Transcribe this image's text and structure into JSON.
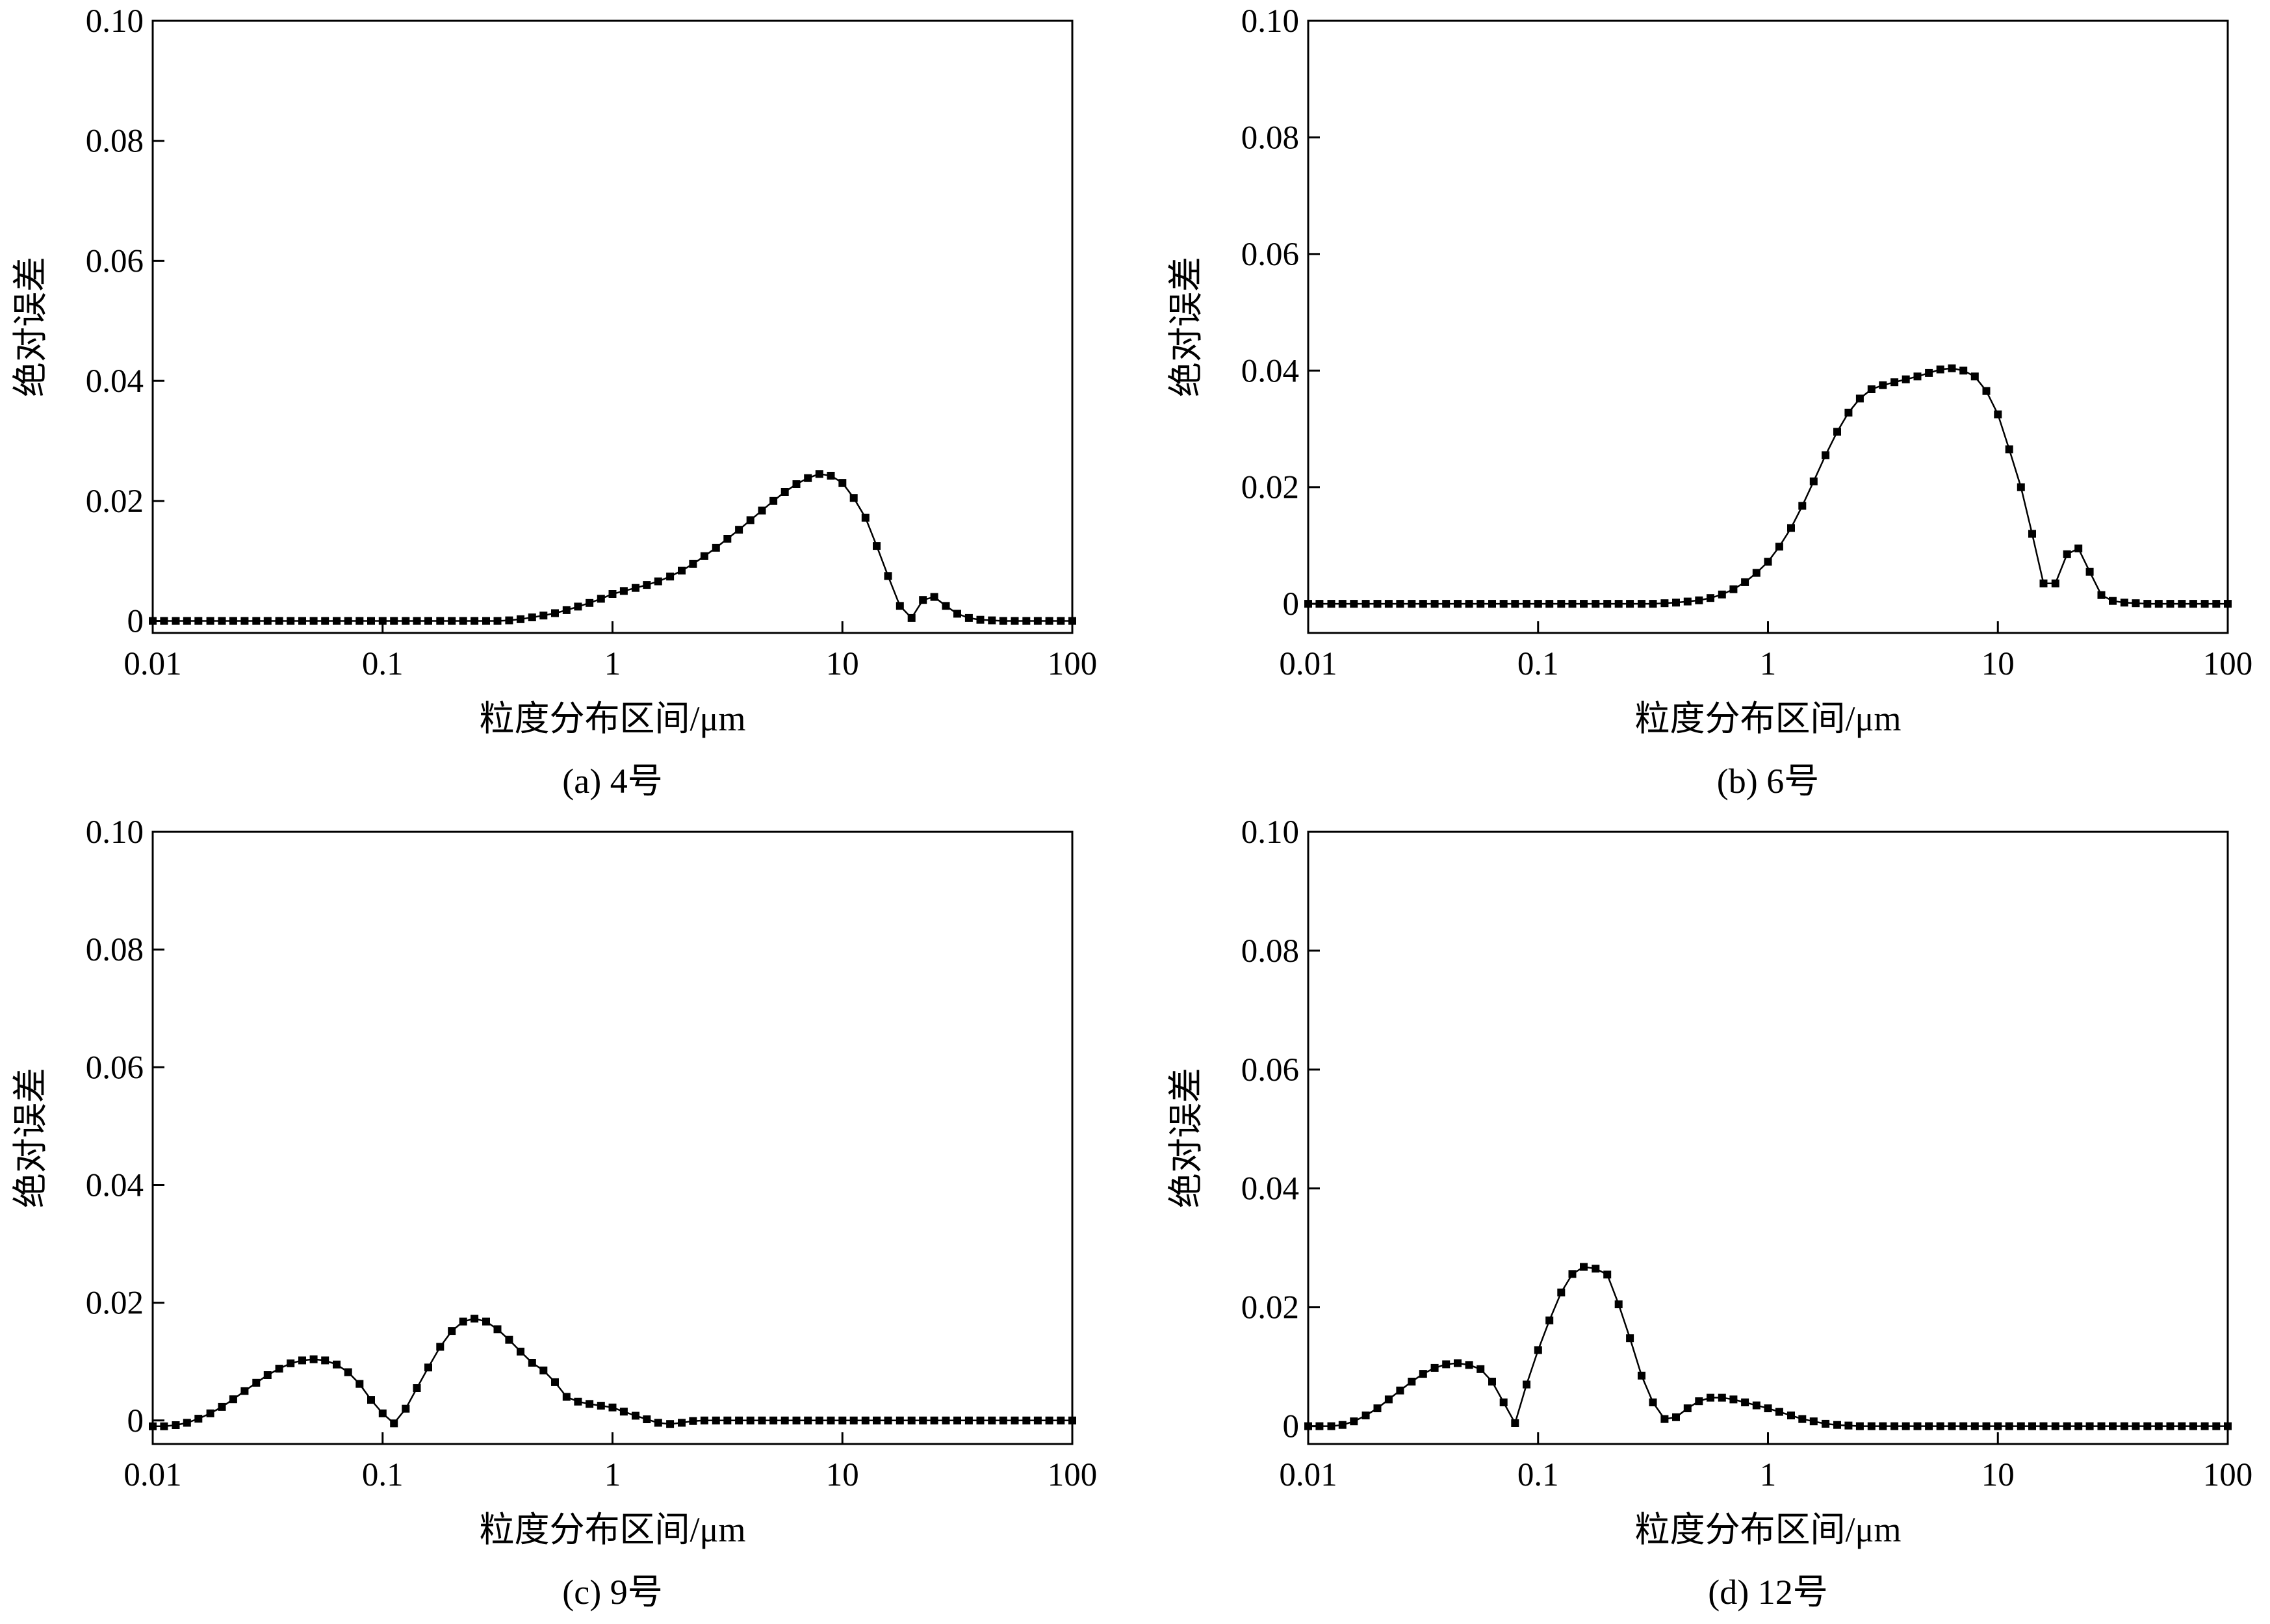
{
  "chart_data": [
    {
      "type": "line",
      "caption": "(a) 4号",
      "title": "",
      "xlabel": "粒度分布区间/μm",
      "ylabel": "绝对误差",
      "xscale": "log",
      "xlim": [
        0.01,
        100
      ],
      "ylim": [
        -0.002,
        0.1
      ],
      "xticks": [
        0.01,
        0.1,
        1,
        10,
        100
      ],
      "xtick_labels": [
        "0.01",
        "0.1",
        "1",
        "10",
        "100"
      ],
      "yticks": [
        0,
        0.02,
        0.04,
        0.06,
        0.08,
        0.1
      ],
      "ytick_labels": [
        "0",
        "0.02",
        "0.04",
        "0.06",
        "0.08",
        "0.10"
      ],
      "series": [
        {
          "name": "4号",
          "marker": "square",
          "color": "#000000",
          "x": [
            0.01,
            0.0112,
            0.0126,
            0.0141,
            0.0158,
            0.0178,
            0.02,
            0.0224,
            0.0251,
            0.0282,
            0.0316,
            0.0355,
            0.0398,
            0.0447,
            0.0501,
            0.0562,
            0.0631,
            0.0708,
            0.0794,
            0.0891,
            0.1,
            0.112,
            0.126,
            0.141,
            0.158,
            0.178,
            0.2,
            0.224,
            0.251,
            0.282,
            0.316,
            0.355,
            0.398,
            0.447,
            0.501,
            0.562,
            0.631,
            0.708,
            0.794,
            0.891,
            1,
            1.12,
            1.26,
            1.41,
            1.58,
            1.78,
            2,
            2.24,
            2.51,
            2.82,
            3.16,
            3.55,
            3.98,
            4.47,
            5.01,
            5.62,
            6.31,
            7.08,
            7.94,
            8.91,
            10,
            11.2,
            12.6,
            14.1,
            15.8,
            17.8,
            20,
            22.4,
            25.1,
            28.2,
            31.6,
            35.5,
            39.8,
            44.7,
            50.1,
            56.2,
            63.1,
            70.8,
            79.4,
            89.1,
            100
          ],
          "y": [
            0,
            0,
            0,
            0,
            0,
            0,
            0,
            0,
            0,
            0,
            0,
            0,
            0,
            0,
            0,
            0,
            0,
            0,
            0,
            0,
            0,
            0,
            0,
            0,
            0,
            0,
            0,
            0,
            0,
            0,
            0,
            0.0001,
            0.0003,
            0.0006,
            0.0009,
            0.0013,
            0.0018,
            0.0024,
            0.003,
            0.0037,
            0.0045,
            0.005,
            0.0055,
            0.006,
            0.0066,
            0.0074,
            0.0084,
            0.0095,
            0.0108,
            0.0122,
            0.0137,
            0.0152,
            0.0168,
            0.0184,
            0.02,
            0.0215,
            0.0228,
            0.0238,
            0.0245,
            0.0242,
            0.023,
            0.0205,
            0.0172,
            0.0125,
            0.0075,
            0.0025,
            0.0005,
            0.0035,
            0.004,
            0.0025,
            0.0012,
            0.0005,
            0.0002,
            0.0001,
            0,
            0,
            0,
            0,
            0,
            0,
            0
          ]
        }
      ]
    },
    {
      "type": "line",
      "caption": "(b) 6号",
      "title": "",
      "xlabel": "粒度分布区间/μm",
      "ylabel": "绝对误差",
      "xscale": "log",
      "xlim": [
        0.01,
        100
      ],
      "ylim": [
        -0.005,
        0.1
      ],
      "xticks": [
        0.01,
        0.1,
        1,
        10,
        100
      ],
      "xtick_labels": [
        "0.01",
        "0.1",
        "1",
        "10",
        "100"
      ],
      "yticks": [
        0,
        0.02,
        0.04,
        0.06,
        0.08,
        0.1
      ],
      "ytick_labels": [
        "0",
        "0.02",
        "0.04",
        "0.06",
        "0.08",
        "0.10"
      ],
      "series": [
        {
          "name": "6号",
          "marker": "square",
          "color": "#000000",
          "x": [
            0.01,
            0.0112,
            0.0126,
            0.0141,
            0.0158,
            0.0178,
            0.02,
            0.0224,
            0.0251,
            0.0282,
            0.0316,
            0.0355,
            0.0398,
            0.0447,
            0.0501,
            0.0562,
            0.0631,
            0.0708,
            0.0794,
            0.0891,
            0.1,
            0.112,
            0.126,
            0.141,
            0.158,
            0.178,
            0.2,
            0.224,
            0.251,
            0.282,
            0.316,
            0.355,
            0.398,
            0.447,
            0.501,
            0.562,
            0.631,
            0.708,
            0.794,
            0.891,
            1,
            1.12,
            1.26,
            1.41,
            1.58,
            1.78,
            2,
            2.24,
            2.51,
            2.82,
            3.16,
            3.55,
            3.98,
            4.47,
            5.01,
            5.62,
            6.31,
            7.08,
            7.94,
            8.91,
            10,
            11.2,
            12.6,
            14.1,
            15.8,
            17.8,
            20,
            22.4,
            25.1,
            28.2,
            31.6,
            35.5,
            39.8,
            44.7,
            50.1,
            56.2,
            63.1,
            70.8,
            79.4,
            89.1,
            100
          ],
          "y": [
            0,
            0,
            0,
            0,
            0,
            0,
            0,
            0,
            0,
            0,
            0,
            0,
            0,
            0,
            0,
            0,
            0,
            0,
            0,
            0,
            0,
            0,
            0,
            0,
            0,
            0,
            0,
            0,
            0,
            0,
            0,
            0.0001,
            0.0002,
            0.0004,
            0.0006,
            0.001,
            0.0016,
            0.0025,
            0.0037,
            0.0053,
            0.0072,
            0.0098,
            0.013,
            0.0168,
            0.021,
            0.0255,
            0.0295,
            0.0328,
            0.0352,
            0.0368,
            0.0375,
            0.038,
            0.0385,
            0.039,
            0.0396,
            0.0402,
            0.0404,
            0.04,
            0.039,
            0.0365,
            0.0325,
            0.0265,
            0.02,
            0.012,
            0.0035,
            0.0035,
            0.0085,
            0.0095,
            0.0055,
            0.0015,
            0.0005,
            0.0002,
            0.0001,
            0,
            0,
            0,
            0,
            0,
            0,
            0,
            0
          ]
        }
      ]
    },
    {
      "type": "line",
      "caption": "(c) 9号",
      "title": "",
      "xlabel": "粒度分布区间/μm",
      "ylabel": "绝对误差",
      "xscale": "log",
      "xlim": [
        0.01,
        100
      ],
      "ylim": [
        -0.004,
        0.1
      ],
      "xticks": [
        0.01,
        0.1,
        1,
        10,
        100
      ],
      "xtick_labels": [
        "0.01",
        "0.1",
        "1",
        "10",
        "100"
      ],
      "yticks": [
        0,
        0.02,
        0.04,
        0.06,
        0.08,
        0.1
      ],
      "ytick_labels": [
        "0",
        "0.02",
        "0.04",
        "0.06",
        "0.08",
        "0.10"
      ],
      "series": [
        {
          "name": "9号",
          "marker": "square",
          "color": "#000000",
          "x": [
            0.01,
            0.0112,
            0.0126,
            0.0141,
            0.0158,
            0.0178,
            0.02,
            0.0224,
            0.0251,
            0.0282,
            0.0316,
            0.0355,
            0.0398,
            0.0447,
            0.0501,
            0.0562,
            0.0631,
            0.0708,
            0.0794,
            0.0891,
            0.1,
            0.112,
            0.126,
            0.141,
            0.158,
            0.178,
            0.2,
            0.224,
            0.251,
            0.282,
            0.316,
            0.355,
            0.398,
            0.447,
            0.501,
            0.562,
            0.631,
            0.708,
            0.794,
            0.891,
            1,
            1.12,
            1.26,
            1.41,
            1.58,
            1.78,
            2,
            2.24,
            2.51,
            2.82,
            3.16,
            3.55,
            3.98,
            4.47,
            5.01,
            5.62,
            6.31,
            7.08,
            7.94,
            8.91,
            10,
            11.2,
            12.6,
            14.1,
            15.8,
            17.8,
            20,
            22.4,
            25.1,
            28.2,
            31.6,
            35.5,
            39.8,
            44.7,
            50.1,
            56.2,
            63.1,
            70.8,
            79.4,
            89.1,
            100
          ],
          "y": [
            -0.001,
            -0.001,
            -0.0008,
            -0.0004,
            0.0003,
            0.0012,
            0.0023,
            0.0036,
            0.005,
            0.0064,
            0.0077,
            0.0088,
            0.0097,
            0.0102,
            0.0104,
            0.0102,
            0.0095,
            0.0082,
            0.0062,
            0.0035,
            0.0012,
            -0.0005,
            0.002,
            0.0055,
            0.009,
            0.0125,
            0.0152,
            0.0168,
            0.0173,
            0.0168,
            0.0155,
            0.0137,
            0.0117,
            0.0098,
            0.0085,
            0.0065,
            0.004,
            0.0032,
            0.0028,
            0.0025,
            0.0022,
            0.0015,
            0.0008,
            0.0002,
            -0.0004,
            -0.0006,
            -0.0004,
            -0.0001,
            0,
            0,
            0,
            0,
            0,
            0,
            0,
            0,
            0,
            0,
            0,
            0,
            0,
            0,
            0,
            0,
            0,
            0,
            0,
            0,
            0,
            0,
            0,
            0,
            0,
            0,
            0,
            0,
            0,
            0,
            0,
            0,
            0
          ]
        }
      ]
    },
    {
      "type": "line",
      "caption": "(d) 12号",
      "title": "",
      "xlabel": "粒度分布区间/μm",
      "ylabel": "绝对误差",
      "xscale": "log",
      "xlim": [
        0.01,
        100
      ],
      "ylim": [
        -0.003,
        0.1
      ],
      "xticks": [
        0.01,
        0.1,
        1,
        10,
        100
      ],
      "xtick_labels": [
        "0.01",
        "0.1",
        "1",
        "10",
        "100"
      ],
      "yticks": [
        0,
        0.02,
        0.04,
        0.06,
        0.08,
        0.1
      ],
      "ytick_labels": [
        "0",
        "0.02",
        "0.04",
        "0.06",
        "0.08",
        "0.10"
      ],
      "series": [
        {
          "name": "12号",
          "marker": "square",
          "color": "#000000",
          "x": [
            0.01,
            0.0112,
            0.0126,
            0.0141,
            0.0158,
            0.0178,
            0.02,
            0.0224,
            0.0251,
            0.0282,
            0.0316,
            0.0355,
            0.0398,
            0.0447,
            0.0501,
            0.0562,
            0.0631,
            0.0708,
            0.0794,
            0.0891,
            0.1,
            0.112,
            0.126,
            0.141,
            0.158,
            0.178,
            0.2,
            0.224,
            0.251,
            0.282,
            0.316,
            0.355,
            0.398,
            0.447,
            0.501,
            0.562,
            0.631,
            0.708,
            0.794,
            0.891,
            1,
            1.12,
            1.26,
            1.41,
            1.58,
            1.78,
            2,
            2.24,
            2.51,
            2.82,
            3.16,
            3.55,
            3.98,
            4.47,
            5.01,
            5.62,
            6.31,
            7.08,
            7.94,
            8.91,
            10,
            11.2,
            12.6,
            14.1,
            15.8,
            17.8,
            20,
            22.4,
            25.1,
            28.2,
            31.6,
            35.5,
            39.8,
            44.7,
            50.1,
            56.2,
            63.1,
            70.8,
            79.4,
            89.1,
            100
          ],
          "y": [
            0,
            0,
            0,
            0.0002,
            0.0008,
            0.0018,
            0.003,
            0.0045,
            0.006,
            0.0075,
            0.0088,
            0.0098,
            0.0104,
            0.0106,
            0.0103,
            0.0096,
            0.0075,
            0.004,
            0.0005,
            0.007,
            0.0128,
            0.0178,
            0.0225,
            0.0256,
            0.0268,
            0.0265,
            0.0255,
            0.0205,
            0.0148,
            0.0085,
            0.004,
            0.0012,
            0.0015,
            0.003,
            0.0042,
            0.0048,
            0.0048,
            0.0045,
            0.004,
            0.0035,
            0.003,
            0.0024,
            0.0018,
            0.0012,
            0.0008,
            0.0004,
            0.0002,
            0.0001,
            0,
            0,
            0,
            0,
            0,
            0,
            0,
            0,
            0,
            0,
            0,
            0,
            0,
            0,
            0,
            0,
            0,
            0,
            0,
            0,
            0,
            0,
            0,
            0,
            0,
            0,
            0,
            0,
            0,
            0,
            0,
            0,
            0
          ]
        }
      ]
    }
  ]
}
